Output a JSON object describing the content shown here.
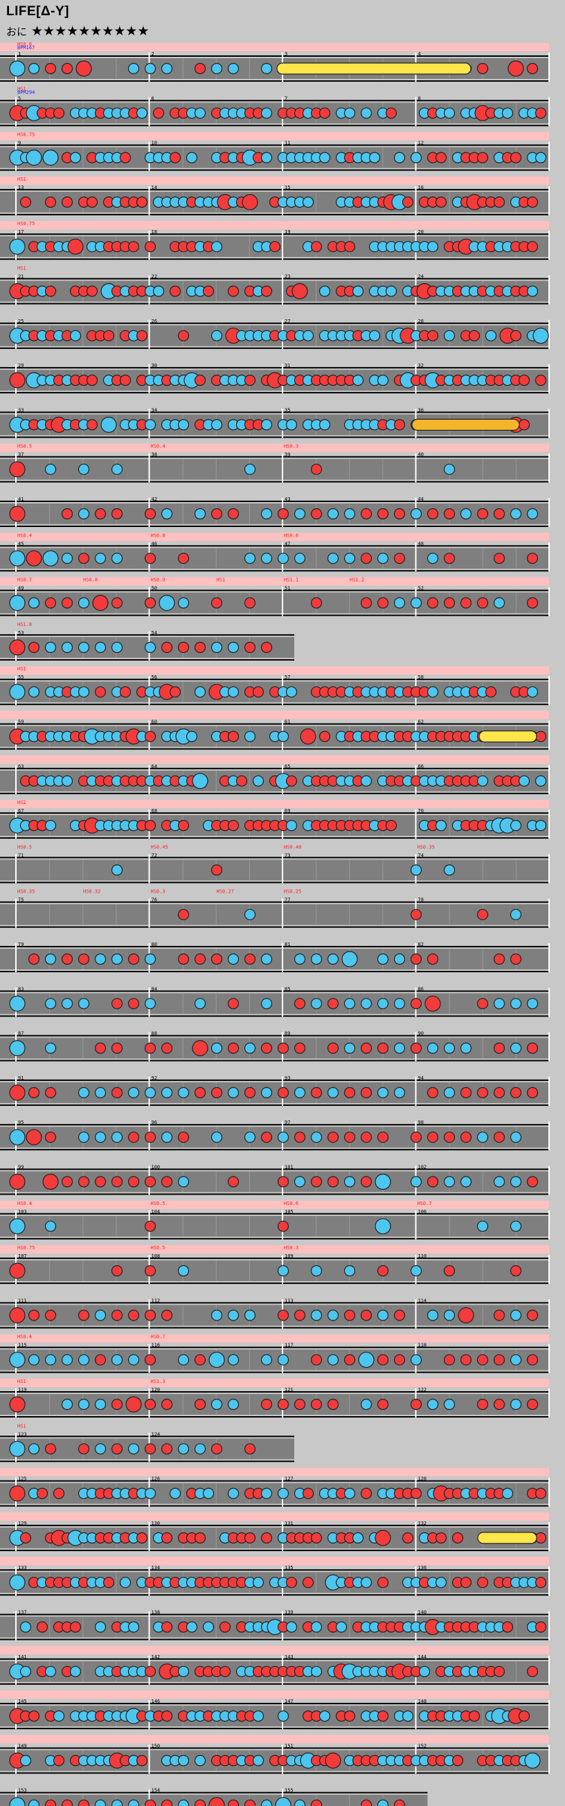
{
  "title": "LIFE[Δ-Y]",
  "difficulty": "おに",
  "stars": "★★★★★★★★★★",
  "colors": {
    "don": "#f33b3b",
    "ka": "#4dc6ef",
    "roll": "#ffe64a",
    "balloon": "#f5b52b",
    "lane": "#7f7f7f",
    "label": "#ff2020",
    "bpm": "#2020ff",
    "pink": "#ffc0c0"
  },
  "rows": [
    {
      "measures": [
        1,
        2,
        3,
        4
      ],
      "labels": [
        "HS0.6",
        "BPM167"
      ],
      "pink": true,
      "ext": "roll-pattern"
    },
    {
      "measures": [
        5,
        6,
        7,
        8
      ],
      "labels": [
        "HS1",
        "BPM294"
      ],
      "pink": false
    },
    {
      "measures": [
        9,
        10,
        11,
        12
      ],
      "labels": [
        "HS0.75"
      ],
      "pink": true
    },
    {
      "measures": [
        13,
        14,
        15,
        16
      ],
      "labels": [
        "HS1"
      ],
      "pink": true
    },
    {
      "measures": [
        17,
        18,
        19,
        20
      ],
      "labels": [
        "HS0.75"
      ],
      "pink": true,
      "note": "HS-4"
    },
    {
      "measures": [
        21,
        22,
        23,
        24
      ],
      "labels": [
        "HS1"
      ],
      "pink": false
    },
    {
      "measures": [
        25,
        26,
        27,
        28
      ],
      "labels": [],
      "pink": false
    },
    {
      "measures": [
        29,
        30,
        31,
        32
      ],
      "labels": [],
      "pink": false
    },
    {
      "measures": [
        33,
        34,
        35,
        36
      ],
      "labels": [],
      "pink": false
    },
    {
      "measures": [
        37,
        38,
        39,
        40
      ],
      "labels": [
        "HS0.5",
        "HS0.4",
        "HS0.3"
      ],
      "pink": true
    },
    {
      "measures": [
        41,
        42,
        43,
        44
      ],
      "labels": [],
      "pink": false
    },
    {
      "measures": [
        45,
        46,
        47,
        48
      ],
      "labels": [
        "HS0.4",
        "HS0.8",
        "HS0.6"
      ],
      "pink": true
    },
    {
      "measures": [
        49,
        50,
        51,
        52
      ],
      "labels": [
        "HS0.7",
        "HS0.8",
        "HS0.9",
        "HS1",
        "HS1.1",
        "HS1.2"
      ],
      "pink": true
    },
    {
      "measures": [
        53,
        54
      ],
      "labels": [
        "HS1.8"
      ],
      "pink": false
    },
    {
      "measures": [
        55,
        56,
        57,
        58
      ],
      "labels": [
        "HS1"
      ],
      "pink": true
    },
    {
      "measures": [
        59,
        60,
        61,
        62
      ],
      "labels": [],
      "pink": true
    },
    {
      "measures": [
        63,
        64,
        65,
        66
      ],
      "labels": [],
      "pink": true
    },
    {
      "measures": [
        67,
        68,
        69,
        70
      ],
      "labels": [
        "HS2"
      ],
      "pink": true
    },
    {
      "measures": [
        71,
        72,
        73,
        74
      ],
      "labels": [
        "HS0.5",
        "HS0.45",
        "HS0.40",
        "HS0.35"
      ],
      "pink": false
    },
    {
      "measures": [
        75,
        76,
        77,
        78
      ],
      "labels": [
        "HS0.35",
        "HS0.32",
        "HS0.3",
        "HS0.27",
        "HS0.25"
      ],
      "pink": false
    },
    {
      "measures": [
        79,
        80,
        81,
        82
      ],
      "labels": [],
      "pink": false
    },
    {
      "measures": [
        83,
        84,
        85,
        86
      ],
      "labels": [],
      "pink": false
    },
    {
      "measures": [
        87,
        88,
        89,
        90
      ],
      "labels": [],
      "pink": false
    },
    {
      "measures": [
        91,
        92,
        93,
        94
      ],
      "labels": [],
      "pink": false
    },
    {
      "measures": [
        95,
        96,
        97,
        98
      ],
      "labels": [],
      "pink": false
    },
    {
      "measures": [
        99,
        100,
        101,
        102
      ],
      "labels": [],
      "pink": false
    },
    {
      "measures": [
        103,
        104,
        105,
        106
      ],
      "labels": [
        "HS0.4",
        "HS0.5",
        "HS0.6",
        "HS0.7"
      ],
      "pink": true
    },
    {
      "measures": [
        107,
        108,
        109,
        110
      ],
      "labels": [
        "HS0.75",
        "HS0.5",
        "HS0.3"
      ],
      "pink": true
    },
    {
      "measures": [
        111,
        112,
        113,
        114
      ],
      "labels": [],
      "pink": false
    },
    {
      "measures": [
        115,
        116,
        117,
        118
      ],
      "labels": [
        "HS0.4",
        "HS0.7"
      ],
      "pink": true
    },
    {
      "measures": [
        119,
        120,
        121,
        122
      ],
      "labels": [
        "HS1",
        "HS1.3"
      ],
      "pink": true
    },
    {
      "measures": [
        123,
        124
      ],
      "labels": [
        "HS1"
      ],
      "pink": false
    },
    {
      "measures": [
        125,
        126,
        127,
        128
      ],
      "labels": [],
      "pink": true
    },
    {
      "measures": [
        129,
        130,
        131,
        132
      ],
      "labels": [],
      "pink": true
    },
    {
      "measures": [
        133,
        134,
        135,
        136
      ],
      "labels": [],
      "pink": true
    },
    {
      "measures": [
        137,
        138,
        139,
        140
      ],
      "labels": [],
      "pink": false
    },
    {
      "measures": [
        141,
        142,
        143,
        144
      ],
      "labels": [],
      "pink": true
    },
    {
      "measures": [
        145,
        146,
        147,
        148
      ],
      "labels": [],
      "pink": true
    },
    {
      "measures": [
        149,
        150,
        151,
        152
      ],
      "labels": [],
      "pink": true
    },
    {
      "measures": [
        153,
        154,
        155
      ],
      "labels": [],
      "pink": false
    }
  ]
}
